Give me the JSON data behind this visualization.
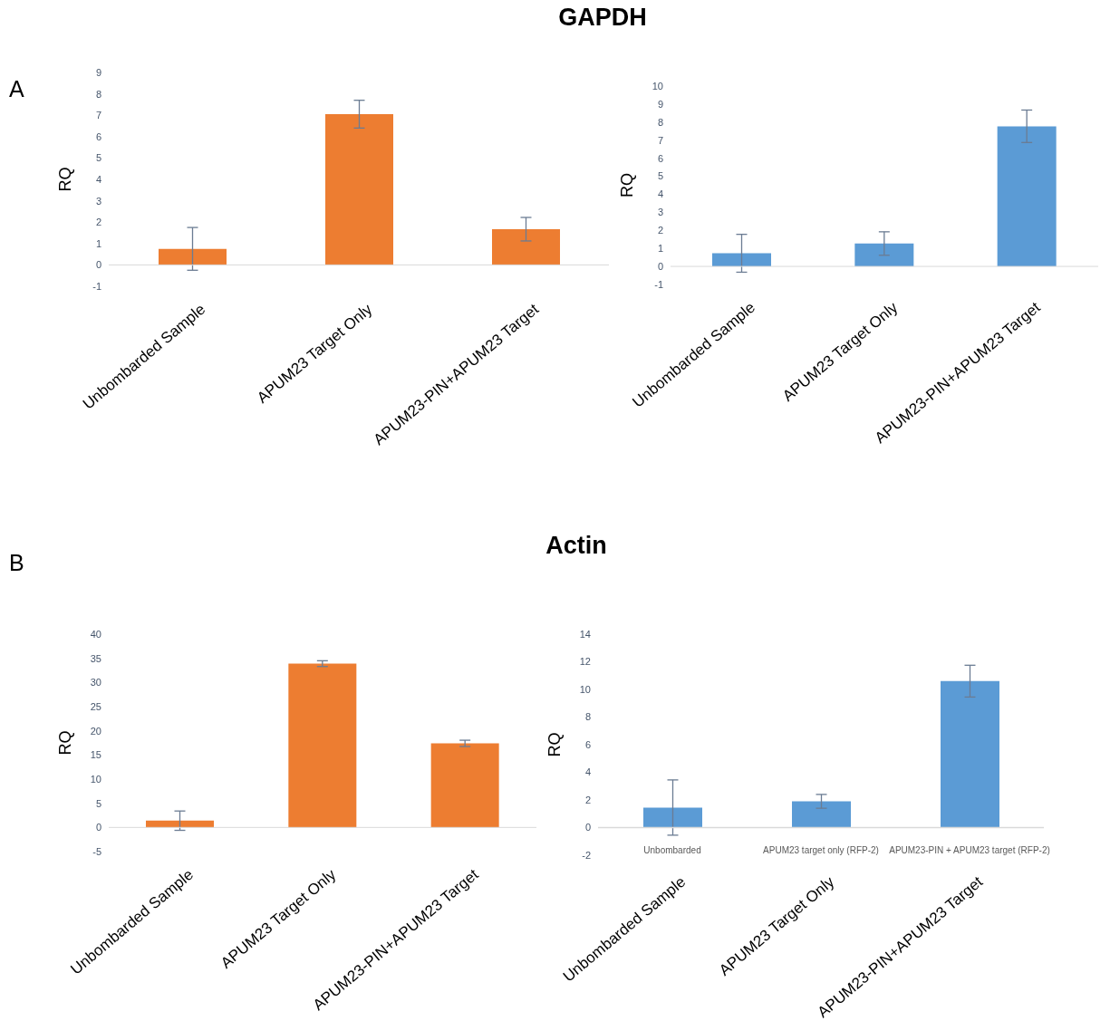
{
  "chart_data": [
    {
      "type": "bar",
      "title": "GAPDH",
      "annotations": [
        "A"
      ],
      "ylabel": "RQ",
      "categories": [
        "Unbombarded Sample",
        "APUM23 Target Only",
        "APUM23-PIN+APUM23 Target"
      ],
      "color": "#ed7d31",
      "values": [
        0.75,
        7.05,
        1.67
      ],
      "errors": [
        1.0,
        0.65,
        0.55
      ],
      "ylim": [
        -1,
        9
      ],
      "yticks": [
        -1,
        0,
        1,
        2,
        3,
        4,
        5,
        6,
        7,
        8,
        9
      ]
    },
    {
      "type": "bar",
      "ylabel": "RQ",
      "categories": [
        "Unbombarded Sample",
        "APUM23 Target Only",
        "APUM23-PIN+APUM23 Target"
      ],
      "color": "#5b9bd5",
      "values": [
        0.73,
        1.27,
        7.77
      ],
      "errors": [
        1.05,
        0.65,
        0.9
      ],
      "ylim": [
        -1,
        10
      ],
      "yticks": [
        -1,
        0,
        1,
        2,
        3,
        4,
        5,
        6,
        7,
        8,
        9,
        10
      ]
    },
    {
      "type": "bar",
      "title": "Actin",
      "annotations": [
        "B"
      ],
      "ylabel": "RQ",
      "categories": [
        "Unbombarded Sample",
        "APUM23 Target Only",
        "APUM23-PIN+APUM23 Target"
      ],
      "color": "#ed7d31",
      "values": [
        1.4,
        33.9,
        17.4
      ],
      "errors": [
        2.0,
        0.6,
        0.65
      ],
      "ylim": [
        -5,
        40
      ],
      "yticks": [
        -5,
        0,
        5,
        10,
        15,
        20,
        25,
        30,
        35,
        40
      ]
    },
    {
      "type": "bar",
      "ylabel": "RQ",
      "annotations": [
        "Unbombarded",
        "APUM23 target only (RFP-2)",
        "APUM23-PIN + APUM23 target (RFP-2)"
      ],
      "categories": [
        "Unbombarded Sample",
        "APUM23 Target Only",
        "APUM23-PIN+APUM23 Target"
      ],
      "color": "#5b9bd5",
      "values": [
        1.45,
        1.9,
        10.6
      ],
      "errors": [
        2.0,
        0.5,
        1.15
      ],
      "ylim": [
        -2,
        14
      ],
      "yticks": [
        -2,
        0,
        2,
        4,
        6,
        8,
        10,
        12,
        14
      ],
      "ref_lines": [
        {
          "axis": "y",
          "value": 0,
          "color": "#d9d9d9"
        }
      ]
    }
  ]
}
